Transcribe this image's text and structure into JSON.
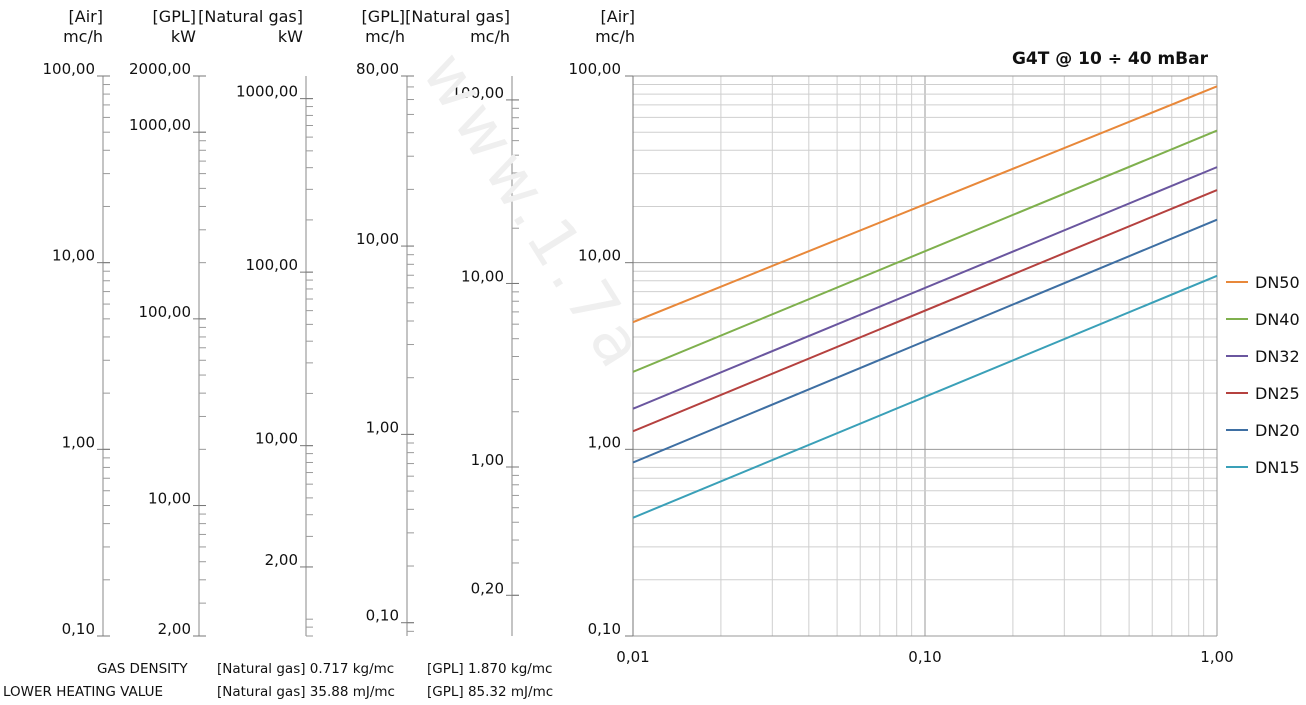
{
  "watermark": "www.1.7a",
  "chart_data": [
    {
      "type": "line",
      "title": "G4T @ 10 ÷ 40 mBar",
      "xscale": "log",
      "yscale": "log",
      "xlim": [
        0.01,
        1.0
      ],
      "ylim": [
        0.1,
        100.0
      ],
      "x_ticks": [
        "0,01",
        "0,10",
        "1,00"
      ],
      "y_ticks": [
        "0,10",
        "1,00",
        "10,00",
        "100,00"
      ],
      "ylabel": "[Air]\nmc/h",
      "grid": true,
      "legend": "right",
      "series": [
        {
          "name": "DN50",
          "color": "#e8883a",
          "x": [
            0.01,
            1.0
          ],
          "y": [
            4.8,
            88.0
          ]
        },
        {
          "name": "DN40",
          "color": "#7fb04d",
          "x": [
            0.01,
            1.0
          ],
          "y": [
            2.6,
            51.0
          ]
        },
        {
          "name": "DN32",
          "color": "#6a569f",
          "x": [
            0.01,
            1.0
          ],
          "y": [
            1.65,
            32.5
          ]
        },
        {
          "name": "DN25",
          "color": "#b5413f",
          "x": [
            0.01,
            1.0
          ],
          "y": [
            1.25,
            24.5
          ]
        },
        {
          "name": "DN20",
          "color": "#3e6fa3",
          "x": [
            0.01,
            1.0
          ],
          "y": [
            0.85,
            17.0
          ]
        },
        {
          "name": "DN15",
          "color": "#3aa0b8",
          "x": [
            0.01,
            1.0
          ],
          "y": [
            0.43,
            8.5
          ]
        }
      ]
    }
  ],
  "scales": [
    {
      "label": "[Air]\nmc/h",
      "min": 0.1,
      "max": 100.0,
      "ticks": [
        0.1,
        1.0,
        10.0,
        100.0
      ],
      "tick_labels": [
        "0,10",
        "1,00",
        "10,00",
        "100,00"
      ]
    },
    {
      "label": "[GPL]\nkW",
      "min": 2.0,
      "max": 2000.0,
      "ticks": [
        2.0,
        10.0,
        100.0,
        1000.0,
        2000.0
      ],
      "tick_labels": [
        "2,00",
        "10,00",
        "100,00",
        "1000,00",
        "2000,00"
      ]
    },
    {
      "label": "[Natural gas]\nkW",
      "min": 0.8,
      "max": 1350.0,
      "ticks": [
        2.0,
        10.0,
        100.0,
        1000.0
      ],
      "tick_labels": [
        "2,00",
        "10,00",
        "100,00",
        "1000,00"
      ]
    },
    {
      "label": "[GPL]\nmc/h",
      "min": 0.085,
      "max": 80.0,
      "ticks": [
        0.1,
        1.0,
        10.0,
        80.0
      ],
      "tick_labels": [
        "0,10",
        "1,00",
        "10,00",
        "80,00"
      ]
    },
    {
      "label": "[Natural gas]\nmc/h",
      "min": 0.12,
      "max": 135.0,
      "ticks": [
        0.2,
        1.0,
        10.0,
        100.0
      ],
      "tick_labels": [
        "0,20",
        "1,00",
        "10,00",
        "100,00"
      ]
    }
  ],
  "footer": {
    "density_label": "GAS DENSITY",
    "density_ng": "[Natural gas] 0.717 kg/mc",
    "density_gpl": "[GPL] 1.870 kg/mc",
    "lhv_label": "LOWER HEATING VALUE",
    "lhv_ng": "[Natural gas] 35.88 mJ/mc",
    "lhv_gpl": "[GPL] 85.32 mJ/mc"
  }
}
